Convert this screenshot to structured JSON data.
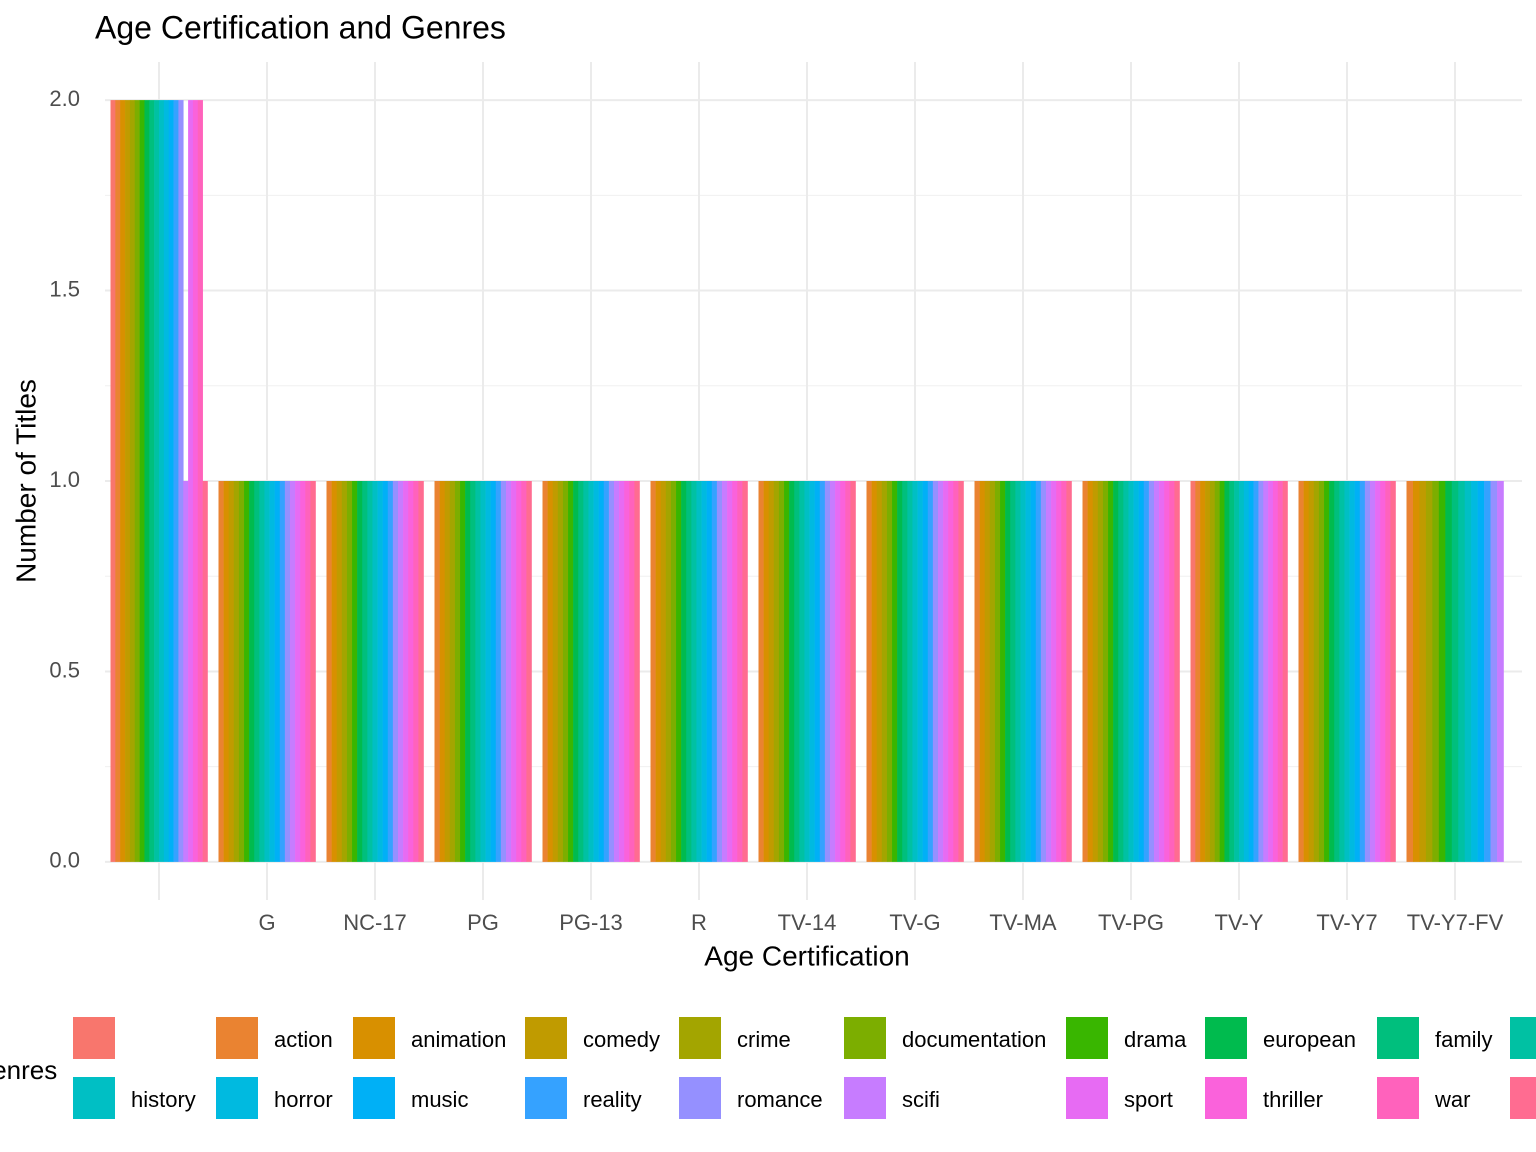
{
  "chart_data": {
    "type": "bar",
    "title": "Age Certification and Genres",
    "x_label": "Age Certification",
    "y_label": "Number of Titles",
    "legend_title": "Genres",
    "categories": [
      null,
      "G",
      "NC-17",
      "PG",
      "PG-13",
      "R",
      "TV-14",
      "TV-G",
      "TV-MA",
      "TV-PG",
      "TV-Y",
      "TV-Y7",
      "TV-Y7-FV"
    ],
    "ylim": [
      -0.1,
      2.1
    ],
    "yticks": [
      {
        "value": 0,
        "label": "0.0"
      },
      0.5,
      {
        "value": 1,
        "label": "1.0"
      },
      1.5,
      {
        "value": 2,
        "label": "2.0"
      }
    ],
    "grid": true,
    "legend": "bottom",
    "series": [
      {
        "name": null,
        "color": "#F8766D",
        "values": [
          2,
          null,
          null,
          null,
          null,
          null,
          null,
          null,
          null,
          null,
          1,
          null,
          null
        ]
      },
      {
        "name": "action",
        "color": "#EA8331",
        "values": [
          2,
          1,
          1,
          1,
          1,
          1,
          1,
          1,
          1,
          1,
          1,
          1,
          1
        ]
      },
      {
        "name": "animation",
        "color": "#D89000",
        "values": [
          2,
          1,
          1,
          1,
          1,
          1,
          1,
          1,
          1,
          1,
          1,
          1,
          1
        ]
      },
      {
        "name": "comedy",
        "color": "#C09B00",
        "values": [
          2,
          1,
          1,
          1,
          1,
          1,
          1,
          1,
          1,
          1,
          1,
          1,
          1
        ]
      },
      {
        "name": "crime",
        "color": "#A3A500",
        "values": [
          2,
          1,
          1,
          1,
          1,
          1,
          1,
          1,
          1,
          1,
          1,
          1,
          1
        ]
      },
      {
        "name": "documentation",
        "color": "#7CAE00",
        "values": [
          2,
          1,
          1,
          1,
          1,
          1,
          1,
          1,
          1,
          1,
          1,
          1,
          1
        ]
      },
      {
        "name": "drama",
        "color": "#39B600",
        "values": [
          2,
          1,
          1,
          1,
          1,
          1,
          1,
          1,
          1,
          1,
          1,
          1,
          1
        ]
      },
      {
        "name": "european",
        "color": "#00BB4E",
        "values": [
          2,
          1,
          1,
          1,
          1,
          1,
          1,
          1,
          1,
          1,
          1,
          1,
          1
        ]
      },
      {
        "name": "family",
        "color": "#00BF7D",
        "values": [
          2,
          1,
          1,
          1,
          1,
          1,
          1,
          1,
          1,
          1,
          1,
          1,
          1
        ]
      },
      {
        "name": null,
        "color": "#00C1A3",
        "values": [
          2,
          1,
          1,
          1,
          1,
          1,
          1,
          1,
          1,
          1,
          1,
          1,
          1
        ]
      },
      {
        "name": "history",
        "color": "#00BFC4",
        "values": [
          2,
          1,
          1,
          1,
          1,
          1,
          1,
          1,
          1,
          1,
          1,
          1,
          1
        ]
      },
      {
        "name": "horror",
        "color": "#00BAE0",
        "values": [
          2,
          1,
          1,
          1,
          1,
          1,
          1,
          1,
          1,
          1,
          1,
          1,
          1
        ]
      },
      {
        "name": "music",
        "color": "#00B0F6",
        "values": [
          2,
          1,
          1,
          1,
          1,
          1,
          1,
          1,
          1,
          1,
          1,
          1,
          1
        ]
      },
      {
        "name": "reality",
        "color": "#35A2FF",
        "values": [
          2,
          1,
          1,
          1,
          1,
          1,
          1,
          1,
          1,
          1,
          1,
          1,
          1
        ]
      },
      {
        "name": "romance",
        "color": "#9590FF",
        "values": [
          2,
          1,
          1,
          1,
          1,
          1,
          1,
          1,
          1,
          1,
          1,
          1,
          1
        ]
      },
      {
        "name": "scifi",
        "color": "#C77CFF",
        "values": [
          1,
          1,
          1,
          1,
          1,
          1,
          1,
          1,
          1,
          1,
          1,
          1,
          1
        ]
      },
      {
        "name": "sport",
        "color": "#E76BF3",
        "values": [
          2,
          1,
          1,
          1,
          1,
          1,
          1,
          1,
          1,
          1,
          1,
          1,
          null
        ]
      },
      {
        "name": "thriller",
        "color": "#FA62DB",
        "values": [
          2,
          1,
          1,
          1,
          1,
          1,
          1,
          1,
          1,
          1,
          1,
          1,
          null
        ]
      },
      {
        "name": "war",
        "color": "#FF62BC",
        "values": [
          2,
          1,
          1,
          1,
          1,
          1,
          1,
          1,
          1,
          1,
          1,
          1,
          null
        ]
      },
      {
        "name": null,
        "color": "#FF6C91",
        "values": [
          1,
          1,
          1,
          1,
          1,
          1,
          1,
          1,
          1,
          1,
          1,
          1,
          null
        ]
      }
    ]
  }
}
